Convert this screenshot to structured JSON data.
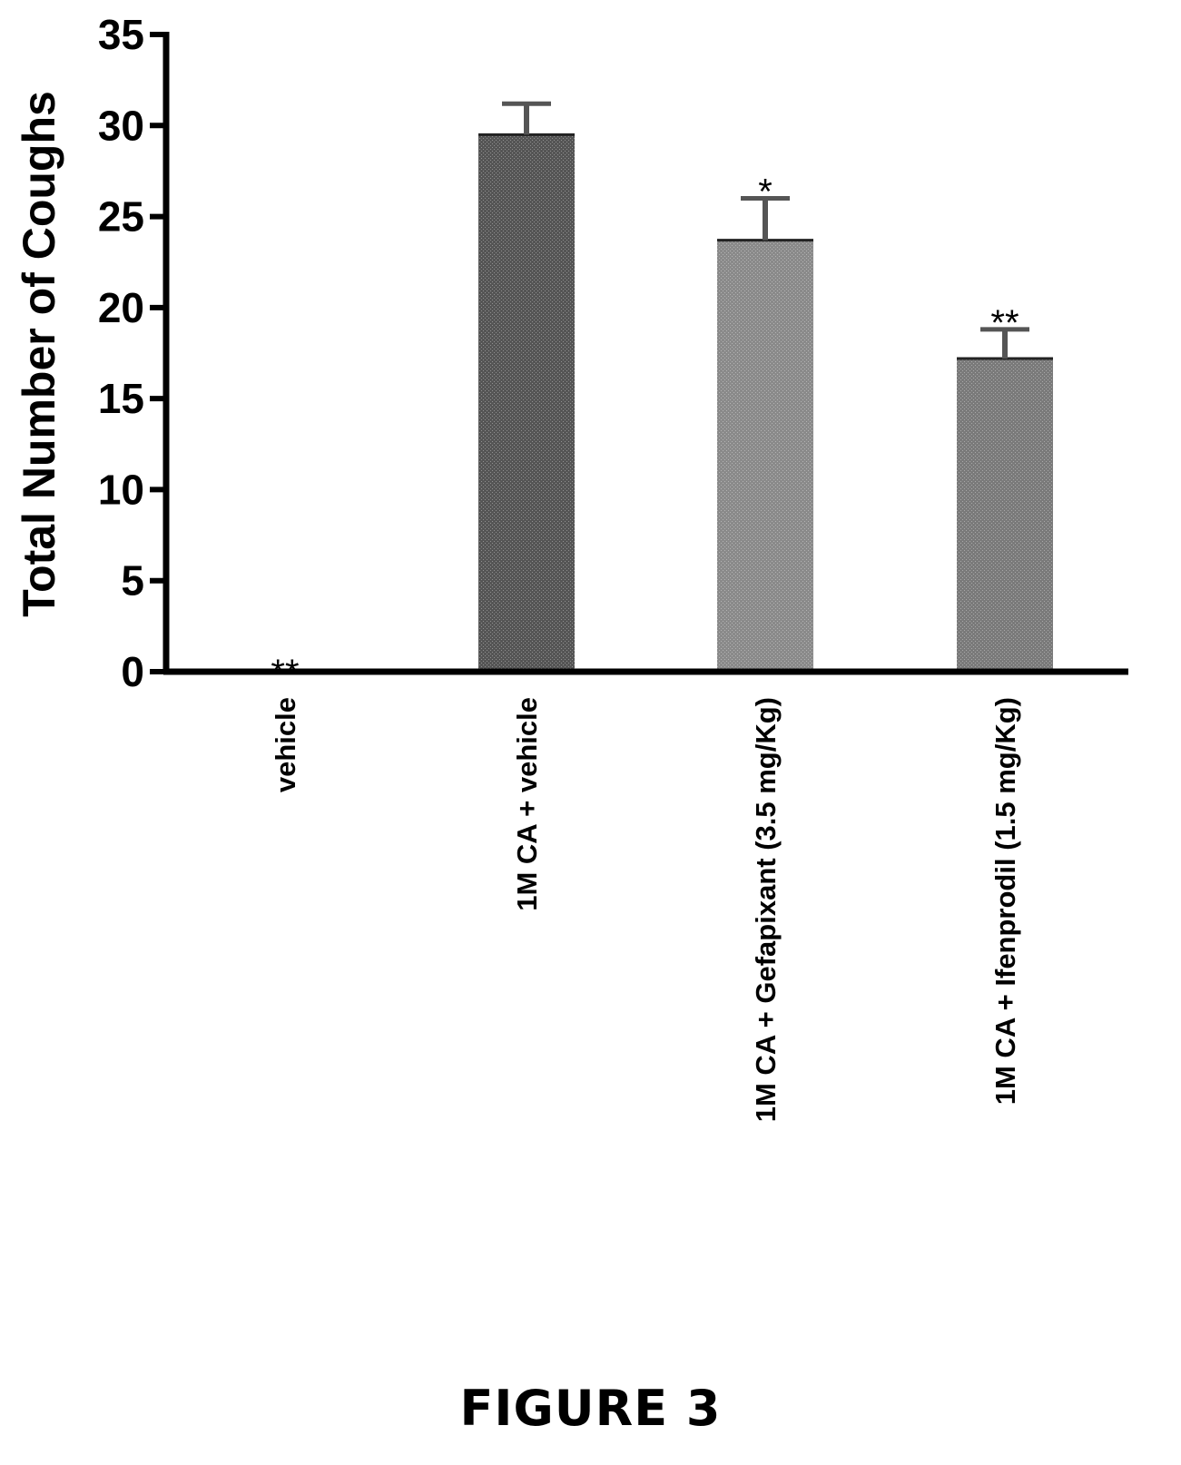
{
  "chart_data": {
    "type": "bar",
    "categories": [
      "vehicle",
      "1M CA + vehicle",
      "1M CA + Gefapixant (3.5 mg/Kg)",
      "1M CA + Ifenprodil (1.5 mg/Kg)"
    ],
    "values": [
      0,
      29.5,
      23.7,
      17.2
    ],
    "error": [
      0,
      1.7,
      2.3,
      1.6
    ],
    "annotations": [
      "**",
      "",
      "*",
      "**"
    ],
    "title": "",
    "xlabel": "",
    "ylabel": "Total Number of Coughs",
    "ylim": [
      0,
      35
    ],
    "yticks": [
      0,
      5,
      10,
      15,
      20,
      25,
      30,
      35
    ],
    "grid": false,
    "bar_colors": [
      "#555555",
      "#555555",
      "#8a8a8a",
      "#7a7a7a"
    ]
  },
  "figure_caption": "FIGURE 3"
}
